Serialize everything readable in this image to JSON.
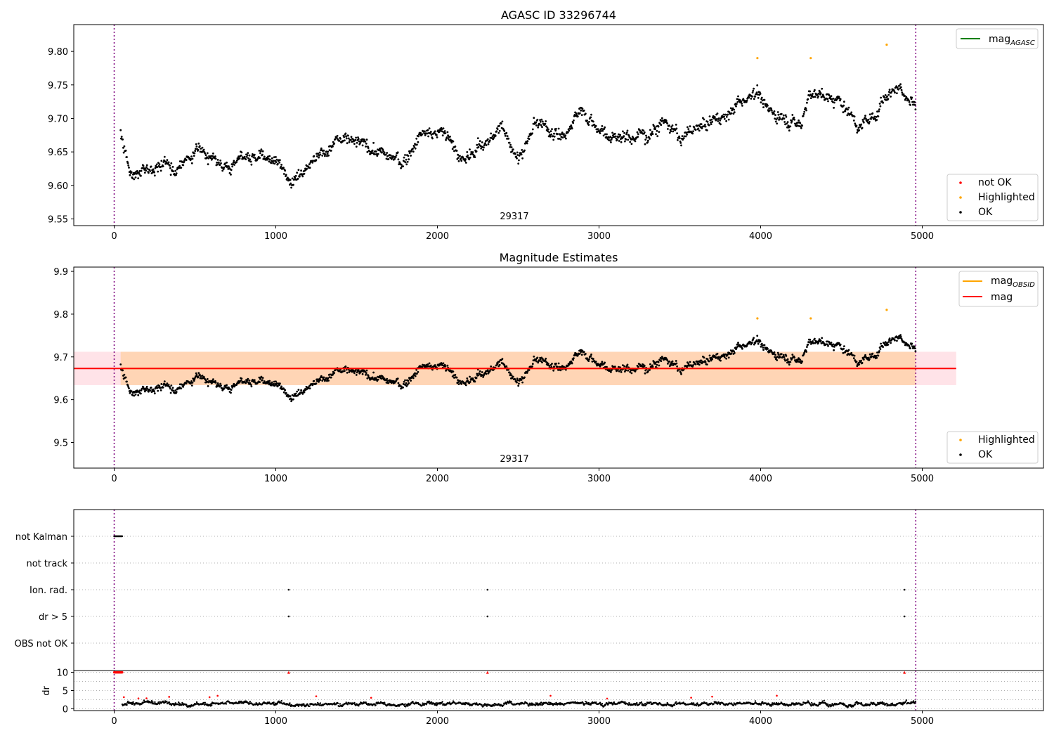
{
  "chart_data": [
    {
      "name": "agasc-panel",
      "type": "scatter",
      "title": "AGASC ID 33296744",
      "annotation": "29317",
      "x_range": [
        -250,
        5750
      ],
      "y_range": [
        9.54,
        9.84
      ],
      "x_ticks": [
        "0",
        "1000",
        "2000",
        "3000",
        "4000",
        "5000"
      ],
      "x_tick_values": [
        0,
        1000,
        2000,
        3000,
        4000,
        5000
      ],
      "y_ticks": [
        "9.55",
        "9.60",
        "9.65",
        "9.70",
        "9.75",
        "9.80"
      ],
      "y_tick_values": [
        9.55,
        9.6,
        9.65,
        9.7,
        9.75,
        9.8
      ],
      "vertical_lines_x": [
        0,
        4960
      ],
      "legend_upper": [
        {
          "label": "mag",
          "sub": "AGASC",
          "color": "#008000"
        }
      ],
      "legend_lower": [
        {
          "label": "not OK",
          "color": "#ff0000"
        },
        {
          "label": "Highlighted",
          "color": "#ffa500"
        },
        {
          "label": "OK",
          "color": "#000000"
        }
      ],
      "highlighted_points": [
        {
          "x": 3980,
          "y": 9.79
        },
        {
          "x": 4310,
          "y": 9.79
        },
        {
          "x": 4780,
          "y": 9.81
        }
      ],
      "trend_knots": {
        "x": [
          40,
          100,
          300,
          400,
          500,
          700,
          900,
          1000,
          1100,
          1200,
          1400,
          1600,
          1800,
          1900,
          2050,
          2150,
          2300,
          2400,
          2500,
          2600,
          2800,
          2900,
          3000,
          3100,
          3300,
          3400,
          3500,
          3600,
          3800,
          3980,
          4050,
          4250,
          4300,
          4500,
          4600,
          4700,
          4750,
          4850,
          4960
        ],
        "y": [
          9.675,
          9.62,
          9.63,
          9.62,
          9.655,
          9.63,
          9.645,
          9.63,
          9.61,
          9.64,
          9.665,
          9.655,
          9.63,
          9.685,
          9.68,
          9.635,
          9.665,
          9.685,
          9.64,
          9.69,
          9.675,
          9.715,
          9.685,
          9.675,
          9.675,
          9.705,
          9.665,
          9.685,
          9.71,
          9.745,
          9.71,
          9.695,
          9.74,
          9.725,
          9.695,
          9.7,
          9.73,
          9.755,
          9.725
        ]
      }
    },
    {
      "name": "magnitude-panel",
      "type": "scatter",
      "title": "Magnitude Estimates",
      "annotation": "29317",
      "x_range": [
        -250,
        5750
      ],
      "y_range": [
        9.44,
        9.91
      ],
      "x_ticks": [
        "0",
        "1000",
        "2000",
        "3000",
        "4000",
        "5000"
      ],
      "x_tick_values": [
        0,
        1000,
        2000,
        3000,
        4000,
        5000
      ],
      "y_ticks": [
        "9.5",
        "9.6",
        "9.7",
        "9.8",
        "9.9"
      ],
      "y_tick_values": [
        9.5,
        9.6,
        9.7,
        9.8,
        9.9
      ],
      "vertical_lines_x": [
        0,
        4960
      ],
      "mean_mag": 9.673,
      "band_low": 9.634,
      "band_high": 9.712,
      "band_x": [
        -250,
        5210
      ],
      "obsid_band_x": [
        40,
        4960
      ],
      "legend_upper": [
        {
          "label": "mag",
          "sub": "OBSID",
          "color": "#ffa500"
        },
        {
          "label": "mag",
          "sub": "",
          "color": "#ff0000"
        }
      ],
      "legend_lower": [
        {
          "label": "Highlighted",
          "color": "#ffa500"
        },
        {
          "label": "OK",
          "color": "#000000"
        }
      ],
      "highlighted_points": [
        {
          "x": 3980,
          "y": 9.79
        },
        {
          "x": 4310,
          "y": 9.79
        },
        {
          "x": 4780,
          "y": 9.81
        }
      ]
    },
    {
      "name": "flags-panel",
      "type": "scatter",
      "x_range": [
        -250,
        5750
      ],
      "categories": [
        "not Kalman",
        "not track",
        "Ion. rad.",
        "dr > 5",
        "OBS not OK"
      ],
      "vertical_lines_x": [
        0,
        4960
      ],
      "not_kalman_x_range": [
        0,
        50
      ],
      "ion_rad_x": [
        1080,
        2310,
        4890
      ],
      "dr_gt5_x": [
        1080,
        2310,
        4890
      ]
    },
    {
      "name": "dr-panel",
      "type": "scatter",
      "x_range": [
        -250,
        5750
      ],
      "y_range": [
        -0.5,
        10.5
      ],
      "ylabel": "dr",
      "x_ticks": [
        "0",
        "1000",
        "2000",
        "3000",
        "4000",
        "5000"
      ],
      "x_tick_values": [
        0,
        1000,
        2000,
        3000,
        4000,
        5000
      ],
      "y_ticks": [
        "0",
        "5",
        "10"
      ],
      "y_tick_values": [
        0,
        5,
        10
      ],
      "vertical_lines_x": [
        0,
        4960
      ],
      "capped_red_x": [
        1080,
        2310,
        4890
      ],
      "capped_red_cluster_x": [
        0,
        50
      ],
      "capped_value": 10
    }
  ]
}
